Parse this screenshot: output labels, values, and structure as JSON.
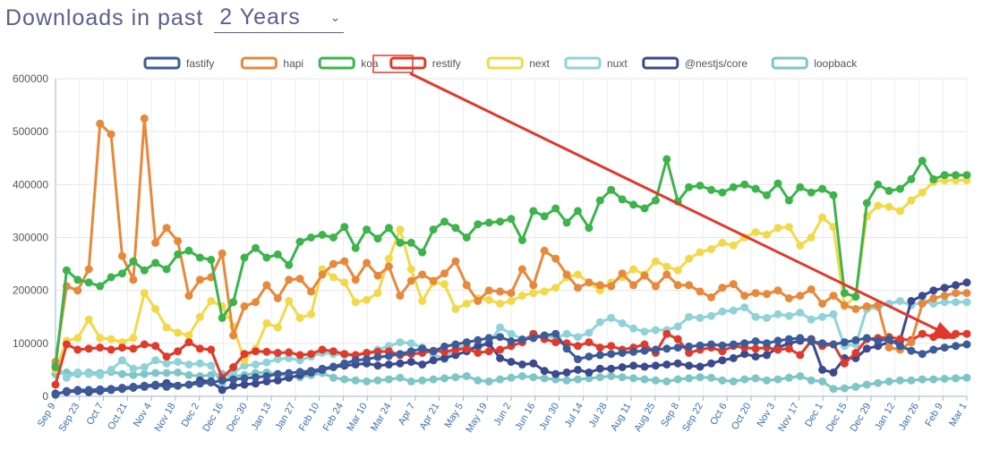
{
  "header": {
    "title": "Downloads in past",
    "period": "2 Years"
  },
  "chart_data": {
    "type": "line",
    "xlabel": "",
    "ylabel": "",
    "ylim": [
      0,
      600000
    ],
    "y_ticks": [
      0,
      100000,
      200000,
      300000,
      400000,
      500000,
      600000
    ],
    "grid": true,
    "legend_position": "top-center",
    "x_labels": [
      "Sep 9",
      "Sep 23",
      "Oct 7",
      "Oct 21",
      "Nov 4",
      "Nov 18",
      "Dec 2",
      "Dec 16",
      "Dec 30",
      "Jan 13",
      "Jan 27",
      "Feb 10",
      "Feb 24",
      "Mar 10",
      "Mar 24",
      "Apr 7",
      "Apr 21",
      "May 5",
      "May 19",
      "Jun 2",
      "Jun 16",
      "Jun 30",
      "Jul 14",
      "Jul 28",
      "Aug 11",
      "Aug 25",
      "Sep 8",
      "Sep 22",
      "Oct 6",
      "Oct 20",
      "Nov 3",
      "Nov 17",
      "Dec 1",
      "Dec 15",
      "Dec 29",
      "Jan 12",
      "Jan 26",
      "Feb 9",
      "Mar 1"
    ],
    "series": [
      {
        "name": "fastify",
        "color": "#3d5a99",
        "values": [
          3000,
          10000,
          12000,
          12000,
          13000,
          14000,
          16000,
          18000,
          20000,
          22000,
          18000,
          20000,
          22000,
          24000,
          26000,
          30000,
          32000,
          34000,
          36000,
          38000,
          42000,
          44000,
          46000,
          48000,
          52000,
          56000,
          62000,
          68000,
          70000,
          74000,
          76000,
          80000,
          85000,
          90000,
          85000,
          94000,
          98000,
          102000,
          106000,
          110000,
          112000,
          104000,
          107000,
          110000,
          115000,
          118000,
          90000,
          70000,
          75000,
          78000,
          80000,
          82000,
          84000,
          86000,
          88000,
          90000,
          92000,
          94000,
          96000,
          98000,
          96000,
          98000,
          100000,
          104000,
          100000,
          105000,
          108000,
          110000,
          104000,
          100000,
          98000,
          102000,
          106000,
          110000,
          105000,
          108000,
          95000,
          86000,
          80000,
          88000,
          92000,
          95000,
          98000
        ]
      },
      {
        "name": "hapi",
        "color": "#e8883a",
        "values": [
          65000,
          208000,
          200000,
          240000,
          515000,
          495000,
          265000,
          220000,
          525000,
          290000,
          318000,
          293000,
          190000,
          220000,
          225000,
          270000,
          115000,
          170000,
          178000,
          210000,
          185000,
          220000,
          222000,
          198000,
          230000,
          250000,
          255000,
          220000,
          252000,
          228000,
          245000,
          190000,
          218000,
          230000,
          218000,
          232000,
          255000,
          210000,
          180000,
          200000,
          198000,
          195000,
          240000,
          210000,
          275000,
          260000,
          230000,
          205000,
          215000,
          210000,
          208000,
          232000,
          210000,
          228000,
          208000,
          230000,
          210000,
          210000,
          198000,
          187000,
          205000,
          212000,
          190000,
          195000,
          193000,
          200000,
          185000,
          190000,
          202000,
          175000,
          190000,
          172000,
          165000,
          170000,
          172000,
          92000,
          88000,
          102000,
          175000,
          185000,
          190000,
          195000,
          195000
        ]
      },
      {
        "name": "koa",
        "color": "#3cb44b",
        "values": [
          55000,
          238000,
          220000,
          215000,
          208000,
          225000,
          232000,
          255000,
          238000,
          252000,
          240000,
          268000,
          275000,
          262000,
          258000,
          148000,
          178000,
          262000,
          280000,
          262000,
          268000,
          248000,
          292000,
          300000,
          305000,
          300000,
          320000,
          280000,
          315000,
          298000,
          318000,
          290000,
          290000,
          272000,
          315000,
          330000,
          318000,
          300000,
          325000,
          328000,
          330000,
          335000,
          295000,
          350000,
          340000,
          355000,
          328000,
          350000,
          318000,
          370000,
          390000,
          372000,
          362000,
          355000,
          370000,
          448000,
          368000,
          395000,
          398000,
          390000,
          385000,
          395000,
          400000,
          392000,
          380000,
          402000,
          370000,
          395000,
          385000,
          392000,
          380000,
          195000,
          188000,
          365000,
          400000,
          388000,
          392000,
          410000,
          445000,
          410000,
          418000,
          418000,
          418000
        ]
      },
      {
        "name": "restify",
        "color": "#e03a2c",
        "values": [
          22000,
          98000,
          88000,
          90000,
          92000,
          88000,
          92000,
          90000,
          98000,
          95000,
          75000,
          85000,
          102000,
          90000,
          88000,
          35000,
          55000,
          80000,
          85000,
          84000,
          82000,
          83000,
          78000,
          80000,
          88000,
          85000,
          80000,
          78000,
          82000,
          84000,
          85000,
          78000,
          80000,
          82000,
          86000,
          84000,
          88000,
          90000,
          82000,
          85000,
          88000,
          95000,
          102000,
          118000,
          108000,
          102000,
          100000,
          95000,
          102000,
          92000,
          95000,
          88000,
          92000,
          98000,
          82000,
          118000,
          108000,
          82000,
          88000,
          92000,
          85000,
          95000,
          92000,
          90000,
          92000,
          88000,
          90000,
          78000,
          105000,
          95000,
          98000,
          62000,
          82000,
          108000,
          110000,
          112000,
          108000,
          106000,
          118000,
          112000,
          115000,
          118000,
          118000
        ]
      },
      {
        "name": "next",
        "color": "#f2d94a",
        "values": [
          50000,
          105000,
          110000,
          145000,
          110000,
          108000,
          102000,
          110000,
          195000,
          165000,
          130000,
          120000,
          115000,
          150000,
          180000,
          170000,
          132000,
          68000,
          90000,
          138000,
          130000,
          180000,
          148000,
          155000,
          240000,
          225000,
          215000,
          178000,
          182000,
          195000,
          260000,
          315000,
          240000,
          180000,
          215000,
          212000,
          165000,
          175000,
          185000,
          182000,
          175000,
          180000,
          190000,
          195000,
          198000,
          205000,
          225000,
          230000,
          215000,
          200000,
          215000,
          225000,
          240000,
          230000,
          255000,
          245000,
          238000,
          260000,
          272000,
          278000,
          290000,
          285000,
          300000,
          310000,
          305000,
          318000,
          320000,
          285000,
          300000,
          338000,
          320000,
          170000,
          190000,
          340000,
          360000,
          358000,
          350000,
          370000,
          385000,
          405000,
          408000,
          408000,
          408000
        ]
      },
      {
        "name": "nuxt",
        "color": "#8fd3d8",
        "values": [
          60000,
          35000,
          45000,
          42000,
          40000,
          50000,
          68000,
          52000,
          55000,
          68000,
          62000,
          65000,
          60000,
          62000,
          58000,
          20000,
          45000,
          58000,
          60000,
          64000,
          70000,
          72000,
          68000,
          75000,
          82000,
          80000,
          78000,
          76000,
          82000,
          88000,
          95000,
          102000,
          100000,
          92000,
          80000,
          70000,
          92000,
          95000,
          90000,
          100000,
          130000,
          118000,
          108000,
          115000,
          115000,
          110000,
          118000,
          112000,
          120000,
          140000,
          148000,
          138000,
          128000,
          122000,
          125000,
          125000,
          132000,
          150000,
          148000,
          152000,
          160000,
          162000,
          168000,
          150000,
          148000,
          155000,
          152000,
          158000,
          145000,
          150000,
          155000,
          95000,
          98000,
          165000,
          168000,
          175000,
          180000,
          172000,
          178000,
          175000,
          178000,
          178000,
          178000
        ]
      },
      {
        "name": "@nestjs/core",
        "color": "#3b4a8f",
        "values": [
          5000,
          8000,
          10000,
          8000,
          10000,
          12000,
          14000,
          16000,
          18000,
          20000,
          25000,
          20000,
          22000,
          30000,
          28000,
          12000,
          20000,
          22000,
          24000,
          28000,
          30000,
          35000,
          40000,
          45000,
          50000,
          55000,
          58000,
          60000,
          62000,
          58000,
          60000,
          62000,
          65000,
          60000,
          68000,
          72000,
          78000,
          85000,
          95000,
          100000,
          72000,
          65000,
          60000,
          62000,
          48000,
          42000,
          45000,
          50000,
          45000,
          52000,
          52000,
          55000,
          58000,
          56000,
          58000,
          60000,
          62000,
          58000,
          56000,
          62000,
          68000,
          72000,
          80000,
          75000,
          78000,
          92000,
          100000,
          105000,
          108000,
          50000,
          45000,
          72000,
          72000,
          90000,
          95000,
          102000,
          105000,
          180000,
          190000,
          200000,
          205000,
          210000,
          215000
        ]
      },
      {
        "name": "loopback",
        "color": "#7ec6c6",
        "values": [
          42000,
          45000,
          42000,
          45000,
          44000,
          46000,
          42000,
          40000,
          42000,
          44000,
          44000,
          45000,
          40000,
          38000,
          40000,
          42000,
          38000,
          40000,
          44000,
          45000,
          42000,
          38000,
          36000,
          40000,
          44000,
          35000,
          32000,
          30000,
          28000,
          30000,
          32000,
          35000,
          28000,
          30000,
          32000,
          34000,
          36000,
          38000,
          30000,
          28000,
          32000,
          35000,
          38000,
          36000,
          34000,
          32000,
          30000,
          32000,
          34000,
          36000,
          38000,
          36000,
          34000,
          32000,
          30000,
          28000,
          32000,
          34000,
          36000,
          35000,
          30000,
          28000,
          32000,
          34000,
          30000,
          32000,
          35000,
          38000,
          30000,
          28000,
          14000,
          15000,
          18000,
          22000,
          25000,
          28000,
          30000,
          30000,
          32000,
          32000,
          33000,
          34000,
          35000
        ]
      }
    ]
  }
}
